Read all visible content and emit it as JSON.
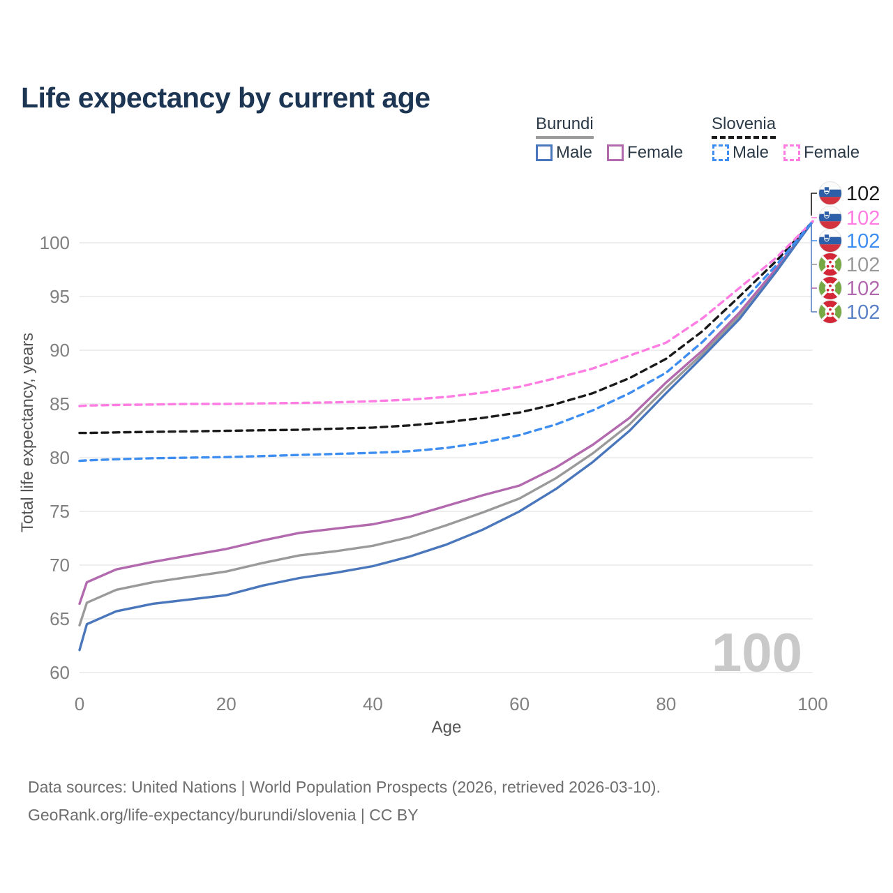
{
  "title": "Life expectancy by current age",
  "watermark_age": "100",
  "legend": {
    "groups": [
      {
        "name": "Burundi",
        "line_style": "solid",
        "underline_color": "#9a9a9a",
        "items": [
          {
            "label": "Male",
            "color": "#4a77bc"
          },
          {
            "label": "Female",
            "color": "#b269ae"
          }
        ]
      },
      {
        "name": "Slovenia",
        "line_style": "dashed",
        "underline_color": "#1a1a1a",
        "items": [
          {
            "label": "Male",
            "color": "#3d8ef0"
          },
          {
            "label": "Female",
            "color": "#ff7ce3"
          }
        ]
      }
    ]
  },
  "chart_data": {
    "type": "line",
    "title": "Life expectancy by current age",
    "xlabel": "Age",
    "ylabel": "Total life expectancy, years",
    "xlim": [
      0,
      100
    ],
    "ylim": [
      60,
      103
    ],
    "x_ticks": [
      0,
      20,
      40,
      60,
      80,
      100
    ],
    "y_ticks": [
      60,
      65,
      70,
      75,
      80,
      85,
      90,
      95,
      100
    ],
    "grid": "horizontal",
    "legend_position": "top-right",
    "x": [
      0,
      1,
      5,
      10,
      15,
      20,
      25,
      30,
      35,
      40,
      45,
      50,
      55,
      60,
      65,
      70,
      75,
      80,
      85,
      90,
      95,
      100
    ],
    "series": [
      {
        "name": "Slovenia Both sexes",
        "country": "Slovenia",
        "sex": "Both",
        "color": "#1a1a1a",
        "label_color": "#1a1a1a",
        "dashed": true,
        "end_label": "102",
        "values": [
          82.3,
          82.3,
          82.35,
          82.4,
          82.45,
          82.5,
          82.55,
          82.6,
          82.7,
          82.8,
          83.0,
          83.3,
          83.7,
          84.2,
          85.0,
          86.0,
          87.4,
          89.2,
          91.8,
          95.0,
          98.3,
          102
        ]
      },
      {
        "name": "Slovenia Female",
        "country": "Slovenia",
        "sex": "Female",
        "color": "#ff7ce3",
        "label_color": "#ff7ce3",
        "dashed": true,
        "end_label": "102",
        "values": [
          84.8,
          84.85,
          84.9,
          84.95,
          85.0,
          85.0,
          85.05,
          85.1,
          85.15,
          85.25,
          85.4,
          85.65,
          86.05,
          86.6,
          87.4,
          88.3,
          89.5,
          90.7,
          93.0,
          95.8,
          98.6,
          102
        ]
      },
      {
        "name": "Slovenia Male",
        "country": "Slovenia",
        "sex": "Male",
        "color": "#3d8ef0",
        "label_color": "#3d8ef0",
        "dashed": true,
        "end_label": "102",
        "values": [
          79.7,
          79.75,
          79.85,
          79.95,
          80.0,
          80.05,
          80.15,
          80.25,
          80.35,
          80.45,
          80.6,
          80.9,
          81.4,
          82.1,
          83.1,
          84.4,
          86.0,
          87.9,
          90.8,
          94.2,
          97.9,
          102
        ]
      },
      {
        "name": "Burundi Both sexes",
        "country": "Burundi",
        "sex": "Both",
        "color": "#9a9a9a",
        "label_color": "#9a9a9a",
        "dashed": false,
        "end_label": "102",
        "values": [
          64.4,
          66.5,
          67.7,
          68.4,
          68.9,
          69.4,
          70.2,
          70.9,
          71.3,
          71.8,
          72.6,
          73.7,
          74.9,
          76.2,
          78.1,
          80.4,
          83.1,
          86.5,
          89.7,
          93.2,
          97.4,
          102
        ]
      },
      {
        "name": "Burundi Female",
        "country": "Burundi",
        "sex": "Female",
        "color": "#b269ae",
        "label_color": "#b269ae",
        "dashed": false,
        "end_label": "102",
        "values": [
          66.4,
          68.4,
          69.6,
          70.3,
          70.9,
          71.5,
          72.3,
          73.0,
          73.4,
          73.8,
          74.5,
          75.5,
          76.5,
          77.4,
          79.1,
          81.2,
          83.7,
          87.0,
          90.0,
          93.5,
          97.6,
          102
        ]
      },
      {
        "name": "Burundi Male",
        "country": "Burundi",
        "sex": "Male",
        "color": "#4a77bc",
        "label_color": "#5b82c6",
        "dashed": false,
        "end_label": "102",
        "values": [
          62.1,
          64.5,
          65.7,
          66.4,
          66.8,
          67.2,
          68.1,
          68.8,
          69.3,
          69.9,
          70.8,
          71.9,
          73.3,
          75.0,
          77.1,
          79.6,
          82.5,
          86.0,
          89.4,
          92.9,
          97.3,
          102
        ]
      }
    ]
  },
  "footer": {
    "line1": "Data sources: United Nations | World Population Prospects (2026, retrieved 2026-03-10).",
    "line2": "GeoRank.org/life-expectancy/burundi/slovenia | CC BY"
  }
}
